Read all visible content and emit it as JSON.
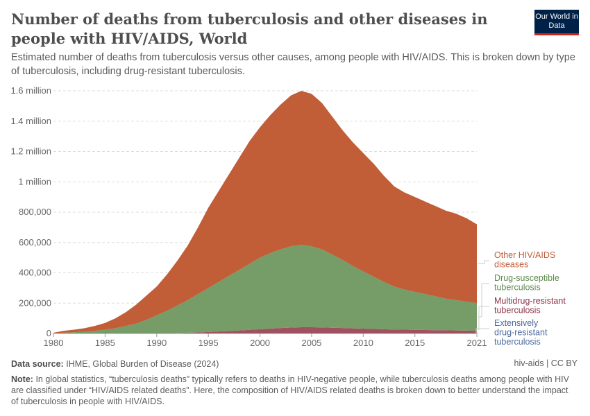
{
  "header": {
    "title": "Number of deaths from tuberculosis and other diseases in people with HIV/AIDS, World",
    "subtitle": "Estimated number of deaths from tuberculosis versus other causes, among people with HIV/AIDS. This is broken down by type of tuberculosis, including drug-resistant tuberculosis.",
    "logo": "Our World in Data"
  },
  "chart_data": {
    "type": "area",
    "stacked": true,
    "x": [
      1980,
      1981,
      1982,
      1983,
      1984,
      1985,
      1986,
      1987,
      1988,
      1989,
      1990,
      1991,
      1992,
      1993,
      1994,
      1995,
      1996,
      1997,
      1998,
      1999,
      2000,
      2001,
      2002,
      2003,
      2004,
      2005,
      2006,
      2007,
      2008,
      2009,
      2010,
      2011,
      2012,
      2013,
      2014,
      2015,
      2016,
      2017,
      2018,
      2019,
      2020,
      2021
    ],
    "series": [
      {
        "name": "Extensively drug-resistant tuberculosis",
        "color": "#4c6a9c",
        "values": [
          0,
          0,
          0,
          0,
          0,
          0,
          0,
          0,
          0,
          0,
          0,
          0,
          0,
          0,
          0,
          0,
          0,
          0,
          0,
          0,
          0,
          0,
          0,
          0,
          0,
          0,
          1000,
          1000,
          1000,
          1000,
          1500,
          1500,
          1500,
          1500,
          1500,
          1500,
          1500,
          1500,
          1500,
          1500,
          1500,
          1500
        ]
      },
      {
        "name": "Multidrug-resistant tuberculosis",
        "color": "#a0505f",
        "values": [
          0,
          0,
          0,
          0,
          0,
          0,
          0,
          0,
          0,
          0,
          1000,
          2000,
          3000,
          5000,
          7000,
          10000,
          13000,
          16000,
          20000,
          24000,
          28000,
          32000,
          36000,
          39000,
          41000,
          41000,
          39000,
          37000,
          35000,
          33000,
          30500,
          28500,
          26500,
          24500,
          23500,
          22500,
          21500,
          20500,
          19500,
          18500,
          17500,
          16500
        ]
      },
      {
        "name": "Drug-susceptible tuberculosis",
        "color": "#769c68",
        "values": [
          3000,
          5000,
          8000,
          12000,
          18000,
          25000,
          35000,
          50000,
          65000,
          90000,
          119000,
          148000,
          182000,
          215000,
          253000,
          290000,
          327000,
          364000,
          400000,
          436000,
          472000,
          498000,
          519000,
          536000,
          544000,
          534000,
          515000,
          482000,
          449000,
          411000,
          378000,
          345000,
          312000,
          284000,
          265000,
          251000,
          237000,
          223000,
          209000,
          200000,
          191000,
          182000
        ]
      },
      {
        "name": "Other HIV/AIDS diseases",
        "color": "#c15d37",
        "values": [
          2000,
          13000,
          17000,
          23000,
          32000,
          45000,
          65000,
          90000,
          125000,
          160000,
          190000,
          240000,
          295000,
          360000,
          440000,
          530000,
          600000,
          670000,
          740000,
          810000,
          860000,
          910000,
          955000,
          995000,
          1015000,
          1005000,
          965000,
          910000,
          855000,
          815000,
          780000,
          745000,
          700000,
          660000,
          640000,
          625000,
          610000,
          595000,
          580000,
          570000,
          550000,
          520000
        ]
      }
    ],
    "ylim": [
      0,
      1600000
    ],
    "yticks": [
      {
        "v": 0,
        "label": "0"
      },
      {
        "v": 200000,
        "label": "200,000"
      },
      {
        "v": 400000,
        "label": "400,000"
      },
      {
        "v": 600000,
        "label": "600,000"
      },
      {
        "v": 800000,
        "label": "800,000"
      },
      {
        "v": 1000000,
        "label": "1 million"
      },
      {
        "v": 1200000,
        "label": "1.2 million"
      },
      {
        "v": 1400000,
        "label": "1.4 million"
      },
      {
        "v": 1600000,
        "label": "1.6 million"
      }
    ],
    "xticks": [
      1980,
      1985,
      1990,
      1995,
      2000,
      2005,
      2010,
      2015,
      2021
    ],
    "grid": true,
    "legend_placement": "right",
    "legend": [
      {
        "lines": [
          "Other HIV/AIDS",
          "diseases"
        ],
        "color": "#c15d37"
      },
      {
        "lines": [
          "Drug-susceptible",
          "tuberculosis"
        ],
        "color": "#5f8a4f"
      },
      {
        "lines": [
          "Multidrug-resistant",
          "tuberculosis"
        ],
        "color": "#8c3346"
      },
      {
        "lines": [
          "Extensively",
          "drug-resistant",
          "tuberculosis"
        ],
        "color": "#4c6a9c"
      }
    ]
  },
  "footer": {
    "source_label": "Data source:",
    "source": "IHME, Global Burden of Disease (2024)",
    "license": "hiv-aids | CC BY",
    "note_label": "Note:",
    "note": "In global statistics, “tuberculosis deaths” typically refers to deaths in HIV-negative people, while tuberculosis deaths among people with HIV are classified under “HIV/AIDS related deaths”. Here, the composition of HIV/AIDS related deaths is broken down to better understand the impact of tuberculosis in people with HIV/AIDS."
  }
}
